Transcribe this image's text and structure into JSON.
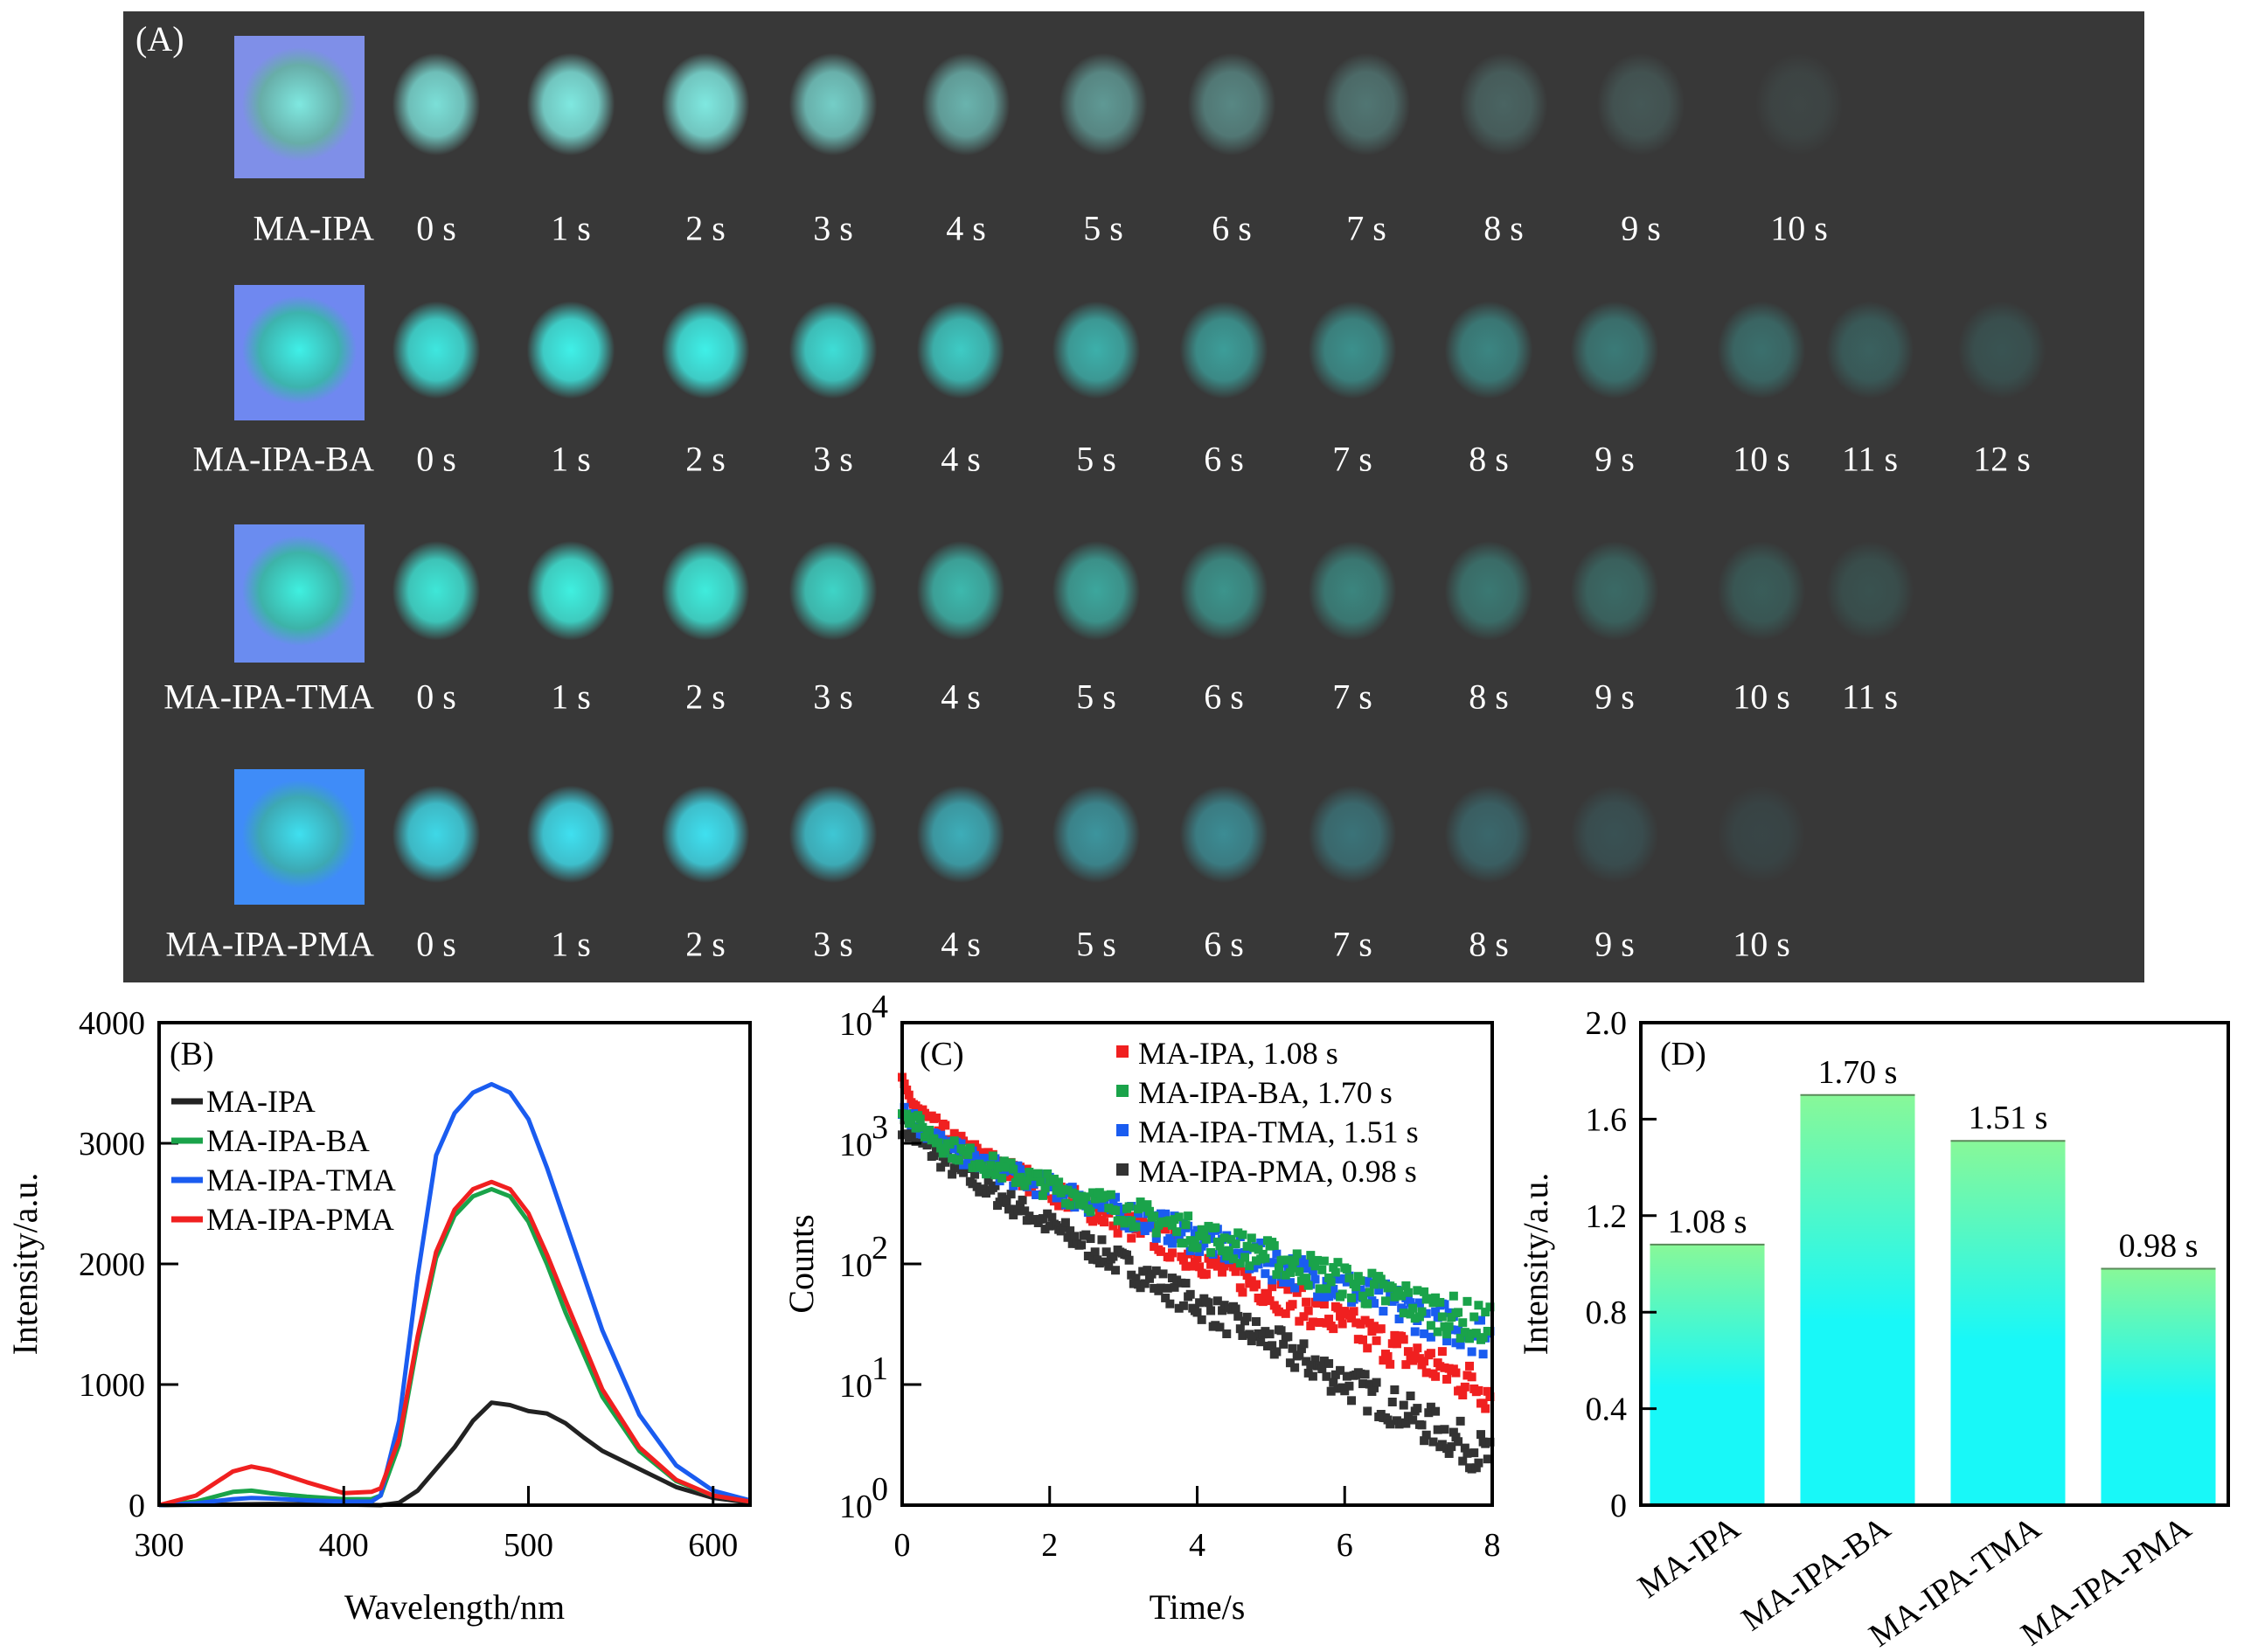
{
  "panel_a": {
    "tag": "(A)",
    "rows": [
      {
        "label": "MA-IPA",
        "ref_color": "#7f8fe8",
        "glow_color": "#7fe8e0",
        "times": [
          "0 s",
          "1 s",
          "2 s",
          "3 s",
          "4 s",
          "5 s",
          "6 s",
          "7 s",
          "8 s",
          "9 s",
          "10 s"
        ],
        "brightness": [
          0.95,
          1.0,
          1.0,
          0.85,
          0.7,
          0.55,
          0.45,
          0.35,
          0.25,
          0.18,
          0.08
        ]
      },
      {
        "label": "MA-IPA-BA",
        "ref_color": "#6f88f0",
        "glow_color": "#3ff0e8",
        "times": [
          "0 s",
          "1 s",
          "2 s",
          "3 s",
          "4 s",
          "5 s",
          "6 s",
          "7 s",
          "8 s",
          "9 s",
          "10 s",
          "11 s",
          "12 s"
        ],
        "brightness": [
          0.95,
          1.0,
          1.0,
          0.9,
          0.8,
          0.65,
          0.55,
          0.48,
          0.42,
          0.36,
          0.3,
          0.22,
          0.15
        ]
      },
      {
        "label": "MA-IPA-TMA",
        "ref_color": "#6a8cf0",
        "glow_color": "#3ff0e0",
        "times": [
          "0 s",
          "1 s",
          "2 s",
          "3 s",
          "4 s",
          "5 s",
          "6 s",
          "7 s",
          "8 s",
          "9 s",
          "10 s",
          "11 s"
        ],
        "brightness": [
          0.95,
          1.0,
          0.98,
          0.85,
          0.7,
          0.6,
          0.5,
          0.42,
          0.35,
          0.27,
          0.2,
          0.14
        ]
      },
      {
        "label": "MA-IPA-PMA",
        "ref_color": "#3f8cf8",
        "glow_color": "#3fe0f0",
        "times": [
          "0 s",
          "1 s",
          "2 s",
          "3 s",
          "4 s",
          "5 s",
          "6 s",
          "7 s",
          "8 s",
          "9 s",
          "10 s"
        ],
        "brightness": [
          0.95,
          1.0,
          1.0,
          0.85,
          0.7,
          0.55,
          0.5,
          0.35,
          0.28,
          0.15,
          0.08
        ]
      }
    ]
  },
  "chart_data": [
    {
      "panel": "(B)",
      "type": "line",
      "xlabel": "Wavelength/nm",
      "ylabel": "Intensity/a.u.",
      "xlim": [
        300,
        620
      ],
      "ylim": [
        0,
        4000
      ],
      "xticks": [
        300,
        400,
        500,
        600
      ],
      "yticks": [
        0,
        1000,
        2000,
        3000,
        4000
      ],
      "legend_position": "top-left",
      "series": [
        {
          "name": "MA-IPA",
          "color": "#222222",
          "x": [
            300,
            330,
            360,
            400,
            420,
            430,
            440,
            450,
            460,
            470,
            480,
            490,
            500,
            510,
            520,
            530,
            540,
            560,
            580,
            600,
            620
          ],
          "y": [
            0,
            5,
            10,
            5,
            0,
            20,
            120,
            300,
            480,
            700,
            850,
            830,
            780,
            760,
            680,
            560,
            450,
            300,
            150,
            60,
            20
          ]
        },
        {
          "name": "MA-IPA-BA",
          "color": "#1aa34a",
          "x": [
            300,
            320,
            340,
            350,
            360,
            380,
            400,
            415,
            420,
            430,
            440,
            450,
            460,
            470,
            480,
            490,
            500,
            510,
            520,
            540,
            560,
            580,
            600,
            620
          ],
          "y": [
            0,
            30,
            110,
            120,
            100,
            70,
            50,
            50,
            80,
            500,
            1350,
            2050,
            2400,
            2560,
            2620,
            2560,
            2350,
            2000,
            1600,
            900,
            450,
            200,
            80,
            30
          ]
        },
        {
          "name": "MA-IPA-TMA",
          "color": "#1a5cf0",
          "x": [
            300,
            320,
            340,
            350,
            360,
            380,
            400,
            415,
            420,
            430,
            440,
            450,
            460,
            470,
            480,
            490,
            500,
            510,
            520,
            540,
            560,
            580,
            600,
            620
          ],
          "y": [
            0,
            15,
            50,
            60,
            55,
            40,
            30,
            30,
            80,
            700,
            1900,
            2900,
            3250,
            3420,
            3490,
            3420,
            3200,
            2800,
            2350,
            1450,
            750,
            330,
            120,
            40
          ]
        },
        {
          "name": "MA-IPA-PMA",
          "color": "#f02020",
          "x": [
            300,
            320,
            340,
            350,
            360,
            380,
            400,
            415,
            420,
            430,
            440,
            450,
            460,
            470,
            480,
            490,
            500,
            510,
            520,
            540,
            560,
            580,
            600,
            620
          ],
          "y": [
            0,
            80,
            280,
            320,
            290,
            190,
            100,
            110,
            140,
            550,
            1400,
            2100,
            2450,
            2620,
            2680,
            2620,
            2420,
            2080,
            1700,
            960,
            480,
            210,
            80,
            30
          ]
        }
      ]
    },
    {
      "panel": "(C)",
      "type": "scatter",
      "xlabel": "Time/s",
      "ylabel": "Counts",
      "xlim": [
        0,
        8
      ],
      "ylim_log10": [
        0,
        4
      ],
      "xticks": [
        0,
        2,
        4,
        6,
        8
      ],
      "yticks": [
        "10^0",
        "10^1",
        "10^2",
        "10^3",
        "10^4"
      ],
      "ytick_labels": [
        {
          "base": "10",
          "exp": "0"
        },
        {
          "base": "10",
          "exp": "1"
        },
        {
          "base": "10",
          "exp": "2"
        },
        {
          "base": "10",
          "exp": "3"
        },
        {
          "base": "10",
          "exp": "4"
        }
      ],
      "legend_position": "top-right",
      "series": [
        {
          "name": "MA-IPA, 1.08 s",
          "color": "#f02020",
          "a0": 3000,
          "lifetime_s": 1.08,
          "slow_tau": 1.55,
          "fast_frac": 0.5,
          "fast_tau": 0.25
        },
        {
          "name": "MA-IPA-BA, 1.70 s",
          "color": "#1aa34a",
          "a0": 2000,
          "lifetime_s": 1.7,
          "slow_tau": 2.2,
          "fast_frac": 0.45,
          "fast_tau": 0.3
        },
        {
          "name": "MA-IPA-TMA, 1.51 s",
          "color": "#1a5cf0",
          "a0": 2000,
          "lifetime_s": 1.51,
          "slow_tau": 2.1,
          "fast_frac": 0.45,
          "fast_tau": 0.3
        },
        {
          "name": "MA-IPA-PMA, 0.98 s",
          "color": "#333333",
          "a0": 1400,
          "lifetime_s": 0.98,
          "slow_tau": 1.35,
          "fast_frac": 0.35,
          "fast_tau": 0.4
        }
      ]
    },
    {
      "panel": "(D)",
      "type": "bar",
      "xlabel": "",
      "ylabel": "Intensity/a.u.",
      "ylim": [
        0,
        2.0
      ],
      "yticks": [
        "0",
        "0.4",
        "0.8",
        "1.2",
        "1.6",
        "2.0"
      ],
      "categories": [
        "MA-IPA",
        "MA-IPA-BA",
        "MA-IPA-TMA",
        "MA-IPA-PMA"
      ],
      "values": [
        1.08,
        1.7,
        1.51,
        0.98
      ],
      "data_labels": [
        "1.08 s",
        "1.70 s",
        "1.51 s",
        "0.98 s"
      ],
      "bar_gradient": [
        "#88f898",
        "#18f8f8"
      ]
    }
  ]
}
